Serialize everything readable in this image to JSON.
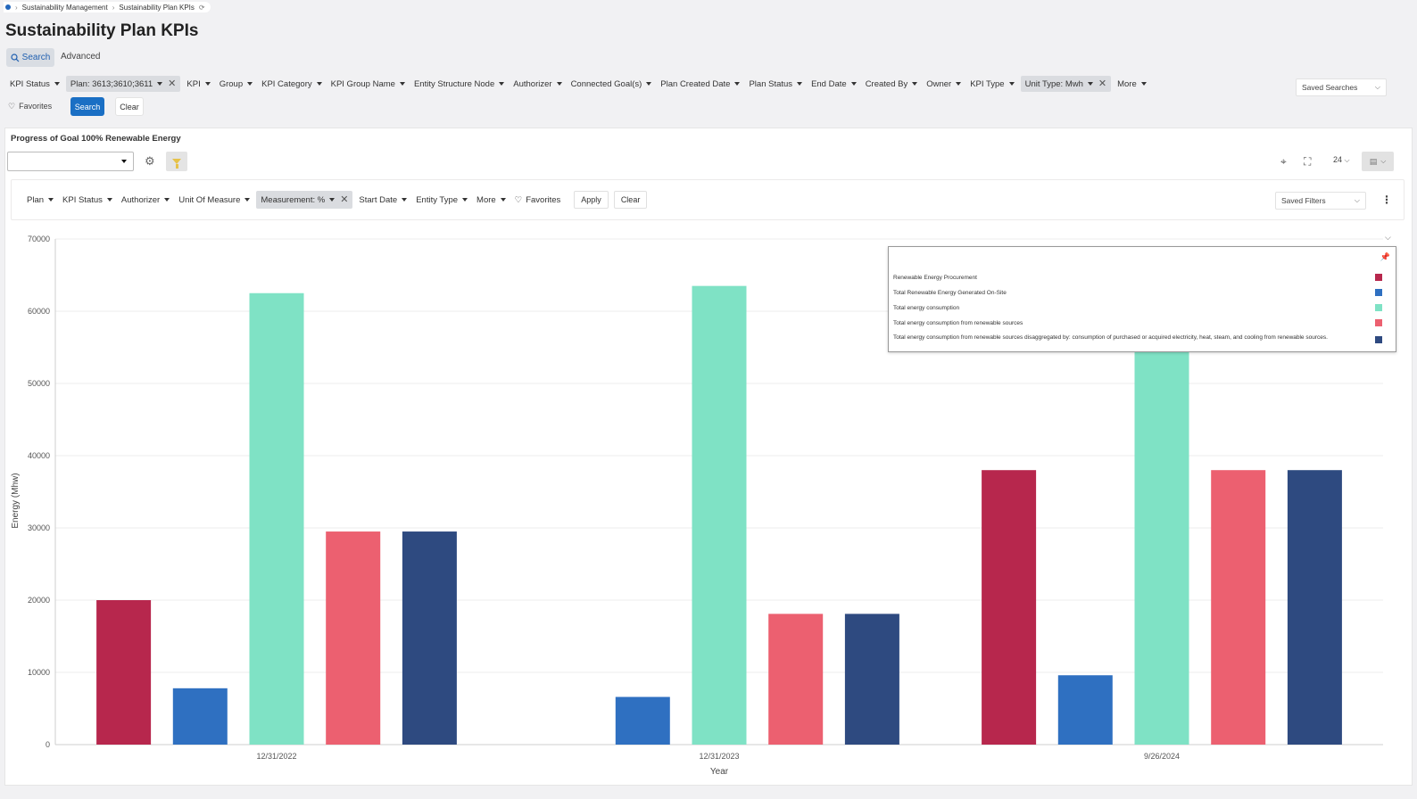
{
  "breadcrumb": {
    "items": [
      "Sustainability Management",
      "Sustainability Plan KPIs"
    ]
  },
  "page": {
    "title": "Sustainability Plan KPIs"
  },
  "tabs": {
    "search": "Search",
    "advanced": "Advanced"
  },
  "filters": [
    {
      "label": "KPI Status",
      "active": false,
      "removable": false
    },
    {
      "label": "Plan: 3613;3610;3611",
      "active": true,
      "removable": true
    },
    {
      "label": "KPI",
      "active": false,
      "removable": false
    },
    {
      "label": "Group",
      "active": false,
      "removable": false
    },
    {
      "label": "KPI Category",
      "active": false,
      "removable": false
    },
    {
      "label": "KPI Group Name",
      "active": false,
      "removable": false
    },
    {
      "label": "Entity Structure Node",
      "active": false,
      "removable": false
    },
    {
      "label": "Authorizer",
      "active": false,
      "removable": false
    },
    {
      "label": "Connected Goal(s)",
      "active": false,
      "removable": false
    },
    {
      "label": "Plan Created Date",
      "active": false,
      "removable": false
    },
    {
      "label": "Plan Status",
      "active": false,
      "removable": false
    },
    {
      "label": "End Date",
      "active": false,
      "removable": false
    },
    {
      "label": "Created By",
      "active": false,
      "removable": false
    },
    {
      "label": "Owner",
      "active": false,
      "removable": false
    },
    {
      "label": "KPI Type",
      "active": false,
      "removable": false
    },
    {
      "label": "Unit Type: Mwh",
      "active": true,
      "removable": true
    },
    {
      "label": "More",
      "active": false,
      "removable": false
    }
  ],
  "saved_searches": "Saved Searches",
  "favorites": "Favorites",
  "actions": {
    "search": "Search",
    "clear": "Clear"
  },
  "panel": {
    "title": "Progress of Goal 100% Renewable Energy",
    "view_value": "",
    "page_size": "24",
    "filters": [
      {
        "label": "Plan",
        "active": false,
        "removable": false
      },
      {
        "label": "KPI Status",
        "active": false,
        "removable": false
      },
      {
        "label": "Authorizer",
        "active": false,
        "removable": false
      },
      {
        "label": "Unit Of Measure",
        "active": false,
        "removable": false
      },
      {
        "label": "Measurement: %",
        "active": true,
        "removable": true
      },
      {
        "label": "Start Date",
        "active": false,
        "removable": false
      },
      {
        "label": "Entity Type",
        "active": false,
        "removable": false
      },
      {
        "label": "More",
        "active": false,
        "removable": false
      }
    ],
    "favorites": "Favorites",
    "apply": "Apply",
    "clear": "Clear",
    "saved_filters": "Saved Filters"
  },
  "icons": {
    "search": "search-icon",
    "refresh": "refresh-icon",
    "heart": "heart-icon",
    "gear": "gear-icon",
    "filter": "filter-icon",
    "target": "crosshair-icon",
    "expand": "expand-icon",
    "export": "export-icon",
    "kebab": "more-vertical-icon",
    "pin": "pin-icon"
  },
  "chart_data": {
    "type": "bar",
    "categories": [
      "12/31/2022",
      "12/31/2023",
      "9/26/2024"
    ],
    "xlabel": "Year",
    "ylabel": "Energy (Mhw)",
    "ylim": [
      0,
      70000
    ],
    "yticks": [
      0,
      10000,
      20000,
      30000,
      40000,
      50000,
      60000,
      70000
    ],
    "grid": true,
    "legend_position": "top-right",
    "series": [
      {
        "name": "Renewable Energy Procurement",
        "color": "#b7274d",
        "values": [
          20000,
          0,
          38000
        ]
      },
      {
        "name": "Total Renewable Energy Generated On-Site",
        "color": "#2f70c1",
        "values": [
          7800,
          6600,
          9600
        ]
      },
      {
        "name": "Total energy consumption",
        "color": "#7fe2c5",
        "values": [
          62500,
          63500,
          58000
        ]
      },
      {
        "name": "Total energy consumption from renewable sources",
        "color": "#ec6070",
        "values": [
          29500,
          18100,
          38000
        ]
      },
      {
        "name": "Total energy consumption from renewable sources disaggregated by: consumption of purchased or acquired electricity, heat, steam, and cooling from renewable sources.",
        "color": "#2e4a80",
        "values": [
          29500,
          18100,
          38000
        ]
      }
    ]
  }
}
